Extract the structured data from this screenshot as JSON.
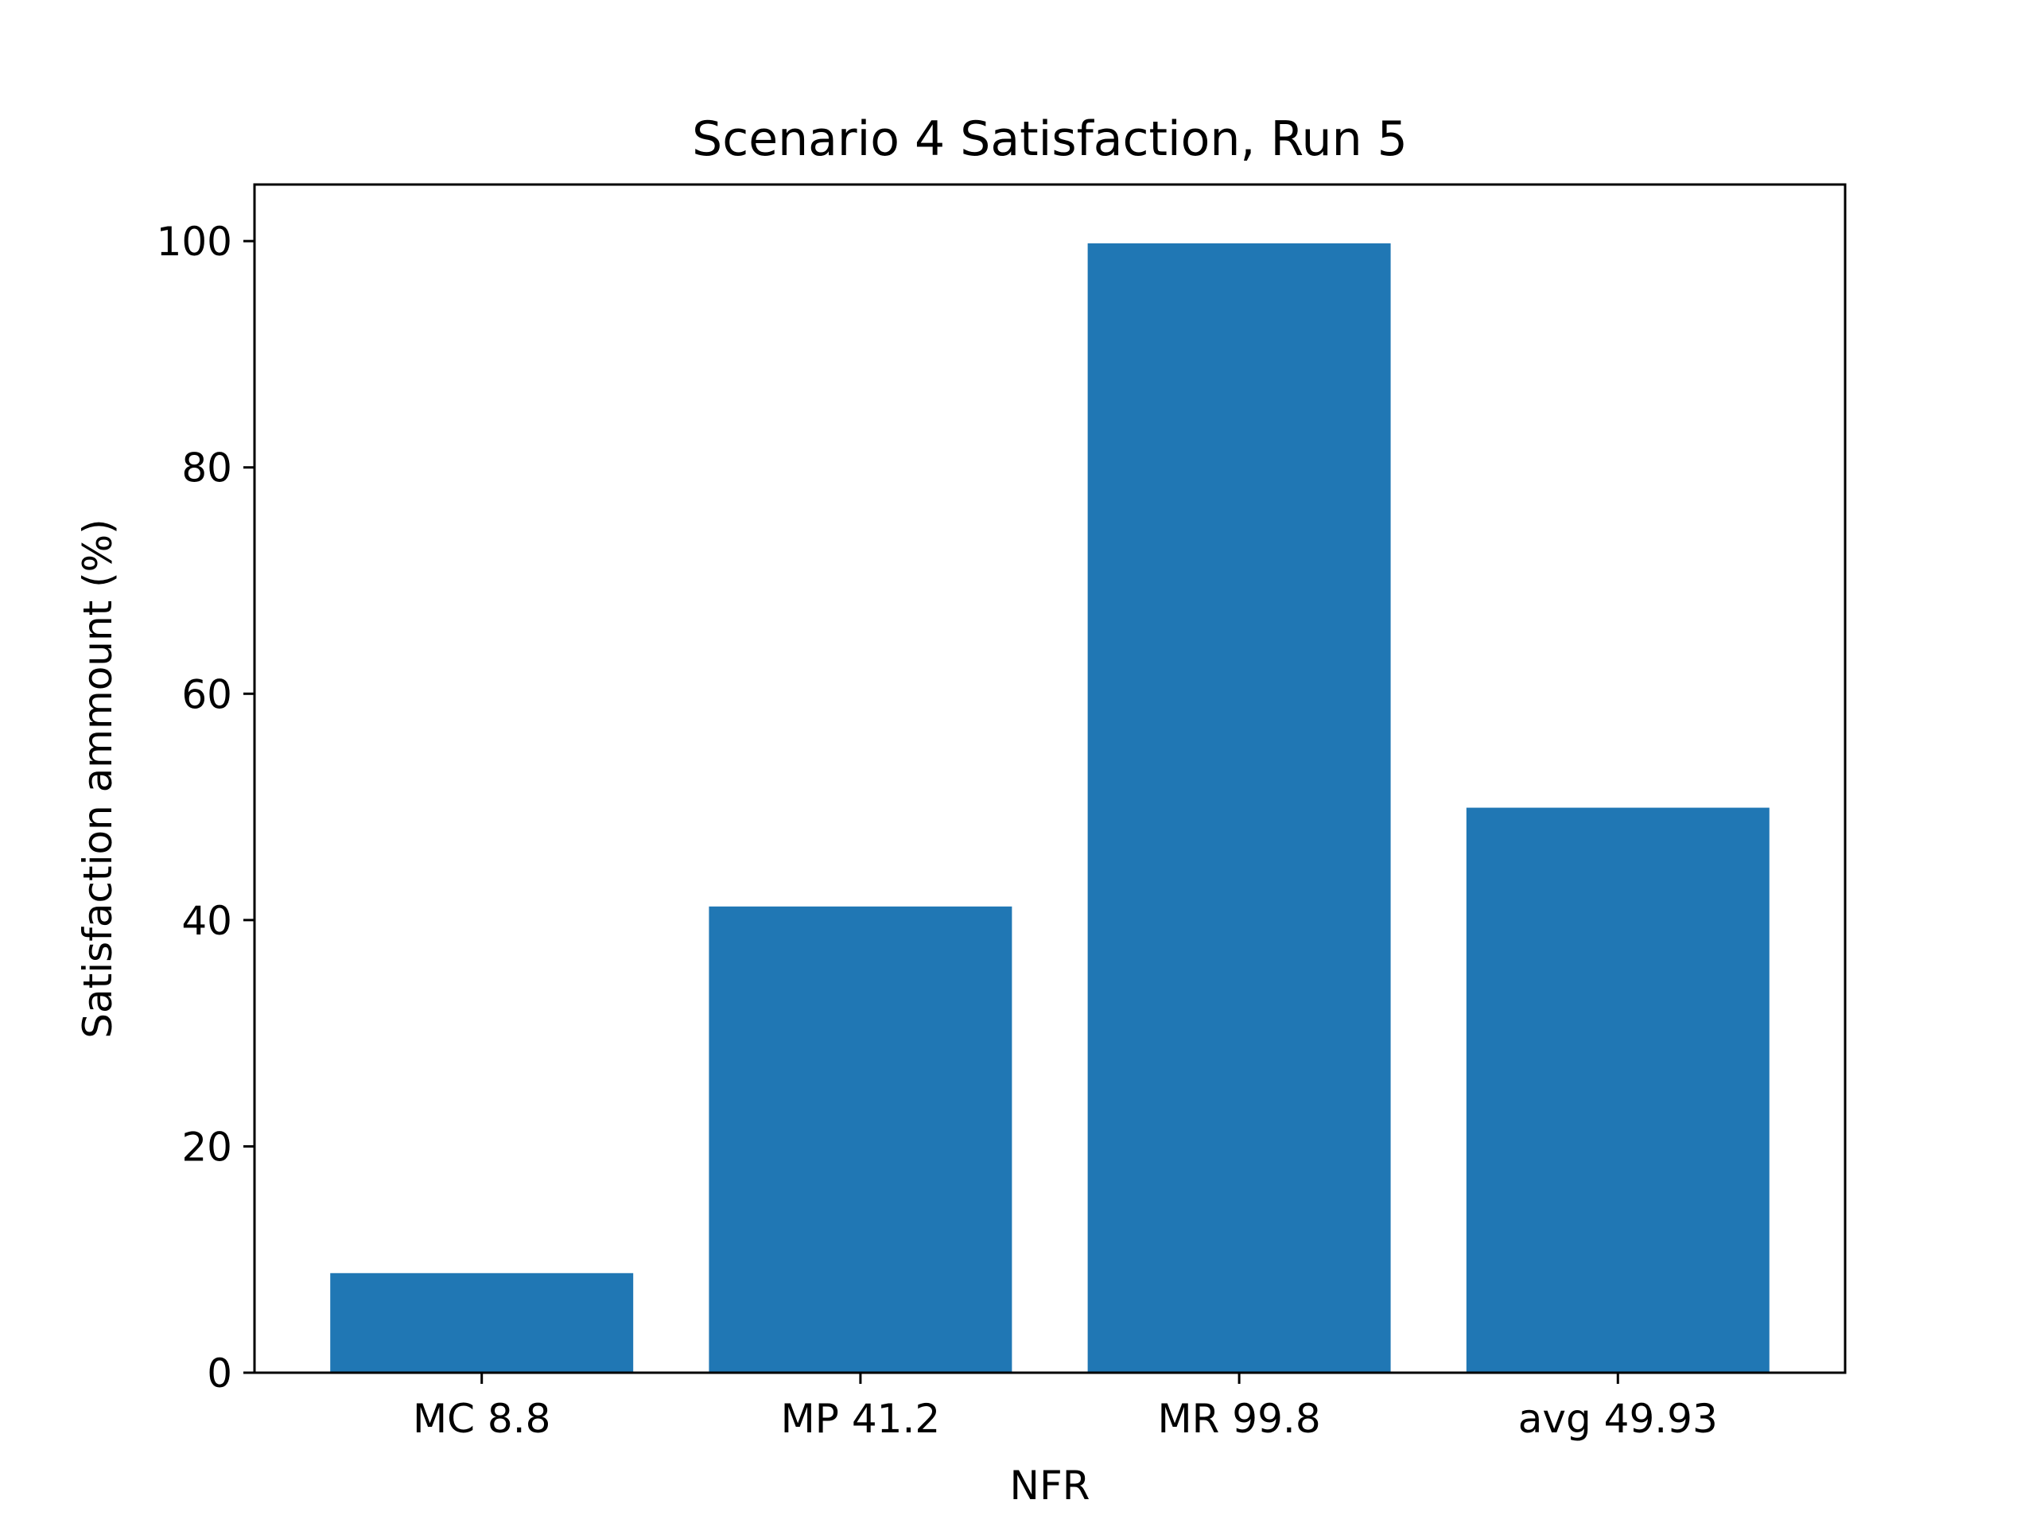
{
  "chart_data": {
    "type": "bar",
    "title": "Scenario 4 Satisfaction, Run 5",
    "xlabel": "NFR",
    "ylabel": "Satisfaction ammount (%)",
    "categories": [
      "MC 8.8",
      "MP 41.2",
      "MR 99.8",
      "avg 49.93"
    ],
    "values": [
      8.8,
      41.2,
      99.8,
      49.93
    ],
    "ylim": [
      0,
      105
    ],
    "yticks": [
      0,
      20,
      40,
      60,
      80,
      100
    ],
    "grid": false,
    "legend": false,
    "colors": {
      "bar": "#2077b4",
      "axis": "#000000",
      "background": "#ffffff"
    }
  }
}
